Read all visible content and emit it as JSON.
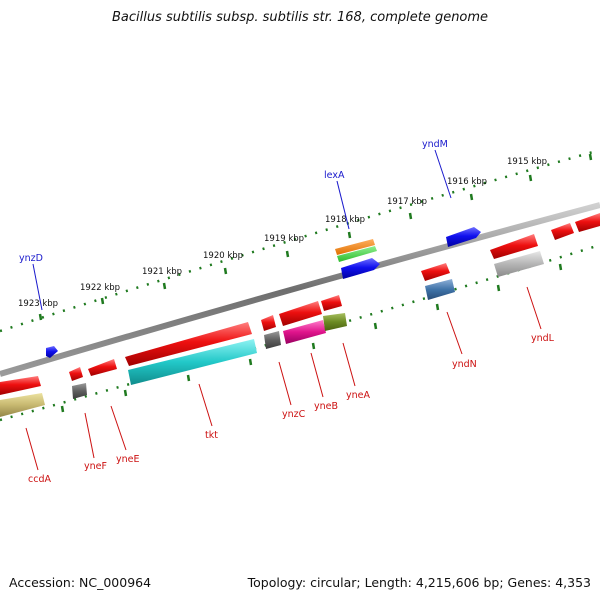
{
  "title": "Bacillus subtilis subsp. subtilis str. 168, complete genome",
  "footer": {
    "accession": "Accession: NC_000964",
    "summary": "Topology: circular; Length: 4,215,606 bp; Genes: 4,353"
  },
  "colors": {
    "backbone": "#7a7a7a",
    "tick": "#1f7a1f",
    "forward_label": "#1a1acc",
    "reverse_label": "#cc1111"
  },
  "kbp_labels": [
    "1915 kbp",
    "1916 kbp",
    "1917 kbp",
    "1918 kbp",
    "1919 kbp",
    "1920 kbp",
    "1921 kbp",
    "1922 kbp",
    "1923 kbp"
  ],
  "forward_gene_labels": [
    "yndM",
    "lexA",
    "ynzD"
  ],
  "reverse_gene_labels": [
    "ccdA",
    "yneF",
    "yneE",
    "tkt",
    "ynzC",
    "yneB",
    "yneA",
    "yndN",
    "yndL"
  ]
}
